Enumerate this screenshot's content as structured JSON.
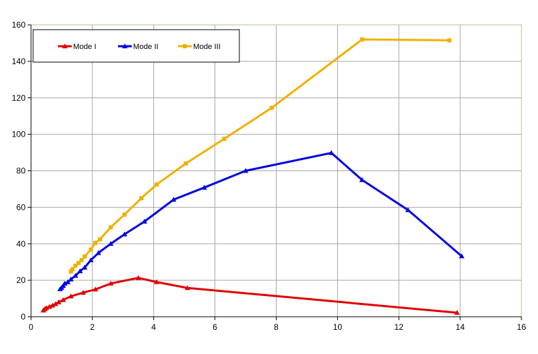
{
  "chart_data": {
    "type": "line",
    "xlim": [
      0,
      16
    ],
    "ylim": [
      0,
      160
    ],
    "x_ticks": [
      0,
      2,
      4,
      6,
      8,
      10,
      12,
      14,
      16
    ],
    "y_ticks": [
      0,
      20,
      40,
      60,
      80,
      100,
      120,
      140,
      160
    ],
    "grid": "on",
    "legend_position": "top-left",
    "series": [
      {
        "name": "Mode I",
        "color": "#e00000",
        "marker": "triangle",
        "x": [
          0.4,
          0.45,
          0.5,
          0.6,
          0.7,
          0.8,
          0.9,
          1.05,
          1.3,
          1.7,
          2.1,
          2.6,
          3.5,
          4.1,
          5.1,
          13.9
        ],
        "y": [
          3.5,
          4.2,
          4.8,
          5.5,
          6.2,
          7.0,
          8.0,
          9.2,
          11.2,
          13.2,
          15.0,
          18.2,
          21.3,
          19.0,
          15.8,
          2.2
        ]
      },
      {
        "name": "Mode II",
        "color": "#0000e0",
        "marker": "triangle",
        "x": [
          0.95,
          1.0,
          1.05,
          1.1,
          1.2,
          1.3,
          1.45,
          1.6,
          1.75,
          1.95,
          2.2,
          2.6,
          3.05,
          3.7,
          4.65,
          5.65,
          7.0,
          9.8,
          10.8,
          12.3,
          14.05
        ],
        "y": [
          15.2,
          16.0,
          17.0,
          18.2,
          19.0,
          20.5,
          22.5,
          25.0,
          27.0,
          31.0,
          35.0,
          40.0,
          45.2,
          52.2,
          64.2,
          70.8,
          80.0,
          89.8,
          75.0,
          58.5,
          33.2
        ]
      },
      {
        "name": "Mode III",
        "color": "#f0b000",
        "marker": "square",
        "x": [
          1.3,
          1.35,
          1.45,
          1.55,
          1.65,
          1.75,
          1.95,
          2.1,
          2.25,
          2.6,
          3.05,
          3.6,
          4.1,
          5.05,
          6.3,
          7.85,
          10.8,
          13.65
        ],
        "y": [
          24.8,
          26.0,
          28.0,
          29.5,
          31.0,
          33.0,
          36.8,
          40.5,
          42.5,
          49.0,
          56.0,
          65.0,
          72.5,
          84.0,
          97.5,
          114.5,
          152.0,
          151.5
        ]
      }
    ]
  }
}
